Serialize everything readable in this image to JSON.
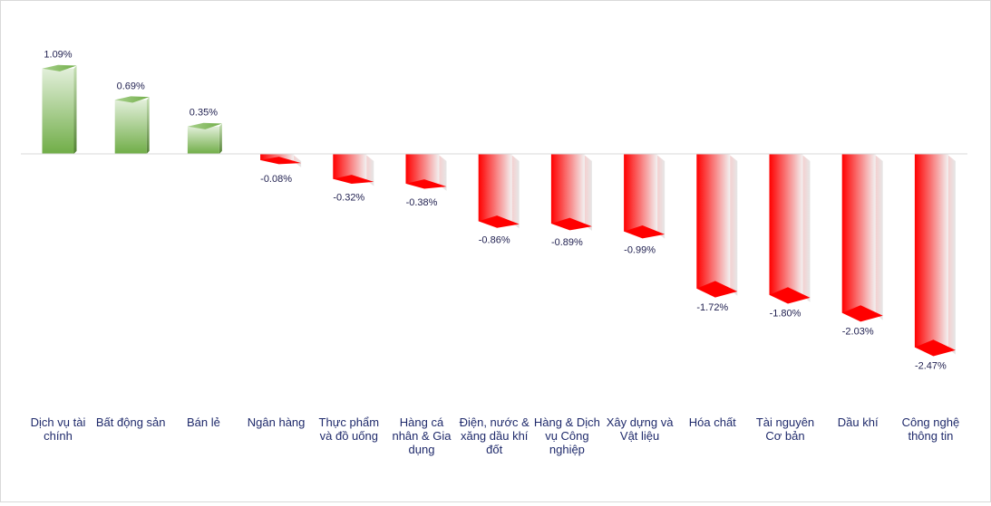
{
  "chart_data": {
    "type": "bar",
    "style": "3d-column",
    "categories": [
      [
        "Dịch vụ tài",
        "chính"
      ],
      [
        "Bất động sản"
      ],
      [
        "Bán lẻ"
      ],
      [
        "Ngân hàng"
      ],
      [
        "Thực phẩm",
        "và đồ uống"
      ],
      [
        "Hàng cá",
        "nhân & Gia",
        "dụng"
      ],
      [
        "Điện, nước &",
        "xăng dầu khí",
        "đốt"
      ],
      [
        "Hàng & Dịch",
        "vụ Công",
        "nghiệp"
      ],
      [
        "Xây dựng và",
        "Vật liệu"
      ],
      [
        "Hóa chất"
      ],
      [
        "Tài nguyên",
        "Cơ bản"
      ],
      [
        "Dầu khí"
      ],
      [
        "Công nghệ",
        "thông tin"
      ]
    ],
    "values": [
      1.09,
      0.69,
      0.35,
      -0.08,
      -0.32,
      -0.38,
      -0.86,
      -0.89,
      -0.99,
      -1.72,
      -1.8,
      -2.03,
      -2.47
    ],
    "value_labels": [
      "1.09%",
      "0.69%",
      "0.35%",
      "-0.08%",
      "-0.32%",
      "-0.38%",
      "-0.86%",
      "-0.89%",
      "-0.99%",
      "-1.72%",
      "-1.80%",
      "-2.03%",
      "-2.47%"
    ],
    "unit": "%",
    "ylim": [
      -2.7,
      1.2
    ],
    "grid": false,
    "legend": "none",
    "colors": {
      "positive": "#70ad47",
      "positive_light": "#e2efda",
      "negative": "#ff0000",
      "negative_light": "#f2f2f2",
      "baseline": "#d9d9d9"
    }
  }
}
